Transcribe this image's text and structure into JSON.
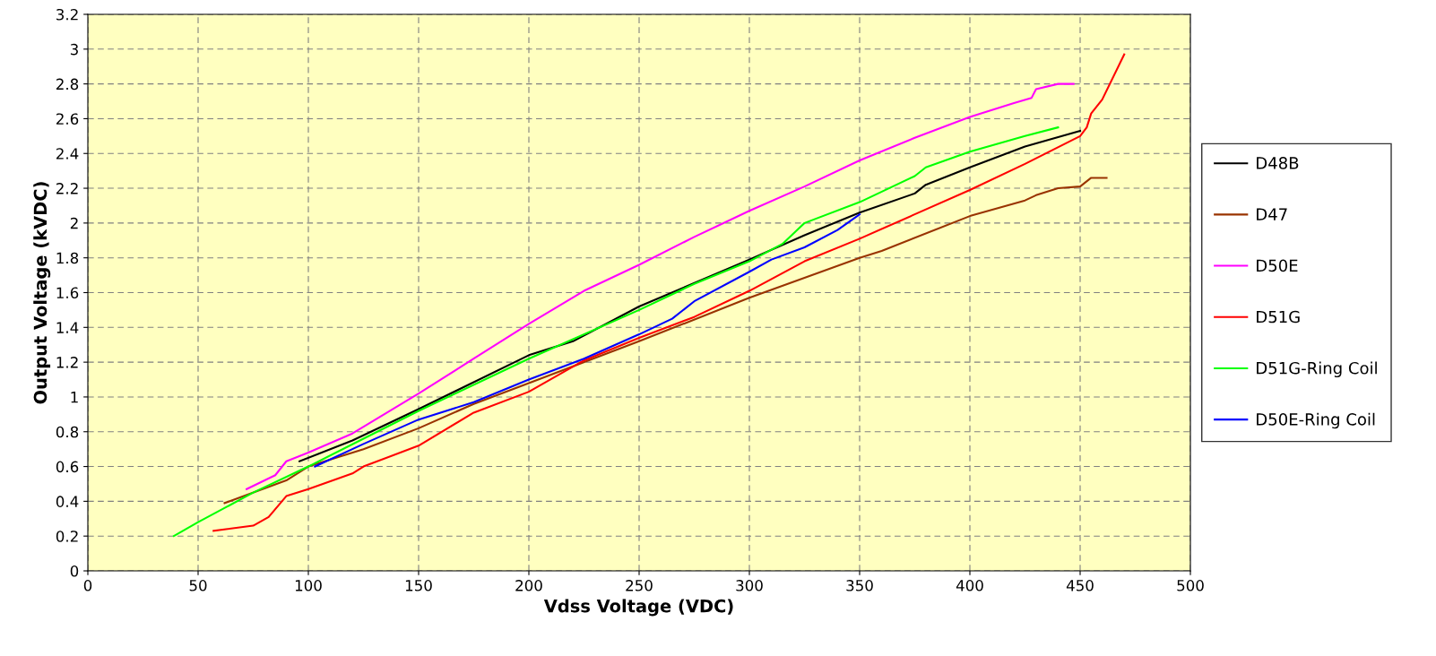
{
  "chart_data": {
    "type": "line",
    "xlabel": "Vdss Voltage (VDC)",
    "ylabel": "Output Voltage (kVDC)",
    "xlim": [
      0,
      500
    ],
    "xticks": [
      0,
      50,
      100,
      150,
      200,
      250,
      300,
      350,
      400,
      450,
      500
    ],
    "ylim": [
      0,
      3.2
    ],
    "yticks": [
      0,
      0.2,
      0.4,
      0.6,
      0.8,
      1,
      1.2,
      1.4,
      1.6,
      1.8,
      2,
      2.2,
      2.4,
      2.6,
      2.8,
      3,
      3.2
    ],
    "grid": true,
    "legend": "right",
    "marker": "none",
    "line_style": "solid",
    "series": [
      {
        "name": "D48B",
        "color": "#000000",
        "x": [
          96,
          120,
          150,
          200,
          220,
          250,
          300,
          325,
          350,
          375,
          380,
          400,
          425,
          450
        ],
        "values": [
          0.63,
          0.75,
          0.93,
          1.24,
          1.32,
          1.52,
          1.79,
          1.93,
          2.06,
          2.17,
          2.22,
          2.32,
          2.44,
          2.53
        ]
      },
      {
        "name": "D47",
        "color": "#993300",
        "x": [
          62,
          90,
          100,
          125,
          150,
          175,
          200,
          250,
          300,
          350,
          360,
          400,
          425,
          430,
          440,
          450,
          455,
          462
        ],
        "values": [
          0.39,
          0.52,
          0.6,
          0.7,
          0.82,
          0.96,
          1.08,
          1.32,
          1.57,
          1.8,
          1.84,
          2.04,
          2.13,
          2.16,
          2.2,
          2.21,
          2.26,
          2.26
        ]
      },
      {
        "name": "D50E",
        "color": "#ff00ff",
        "x": [
          72,
          85,
          90,
          100,
          120,
          150,
          175,
          200,
          225,
          250,
          275,
          300,
          325,
          350,
          375,
          400,
          420,
          428,
          430,
          440,
          447
        ],
        "values": [
          0.47,
          0.55,
          0.63,
          0.68,
          0.79,
          1.02,
          1.22,
          1.42,
          1.61,
          1.76,
          1.92,
          2.07,
          2.21,
          2.36,
          2.49,
          2.61,
          2.69,
          2.72,
          2.77,
          2.8,
          2.8
        ]
      },
      {
        "name": "D51G",
        "color": "#ff0000",
        "x": [
          57,
          75,
          82,
          90,
          100,
          120,
          125,
          150,
          175,
          200,
          225,
          250,
          275,
          300,
          325,
          350,
          375,
          400,
          425,
          450,
          453,
          455,
          460,
          470
        ],
        "values": [
          0.23,
          0.26,
          0.31,
          0.43,
          0.47,
          0.56,
          0.6,
          0.72,
          0.91,
          1.03,
          1.21,
          1.34,
          1.46,
          1.61,
          1.78,
          1.91,
          2.05,
          2.19,
          2.34,
          2.5,
          2.55,
          2.63,
          2.71,
          2.97
        ]
      },
      {
        "name": "D51G-Ring Coil",
        "color": "#00ff00",
        "x": [
          39,
          50,
          75,
          100,
          125,
          150,
          200,
          250,
          275,
          300,
          315,
          325,
          350,
          375,
          380,
          400,
          425,
          440
        ],
        "values": [
          0.2,
          0.28,
          0.45,
          0.6,
          0.76,
          0.92,
          1.22,
          1.5,
          1.65,
          1.78,
          1.88,
          2.0,
          2.12,
          2.27,
          2.32,
          2.41,
          2.5,
          2.55
        ]
      },
      {
        "name": "D50E-Ring Coil",
        "color": "#0000ff",
        "x": [
          103,
          125,
          150,
          175,
          200,
          225,
          250,
          265,
          275,
          300,
          310,
          325,
          340,
          350
        ],
        "values": [
          0.6,
          0.73,
          0.87,
          0.97,
          1.1,
          1.22,
          1.36,
          1.45,
          1.55,
          1.72,
          1.79,
          1.86,
          1.96,
          2.05
        ]
      }
    ]
  }
}
